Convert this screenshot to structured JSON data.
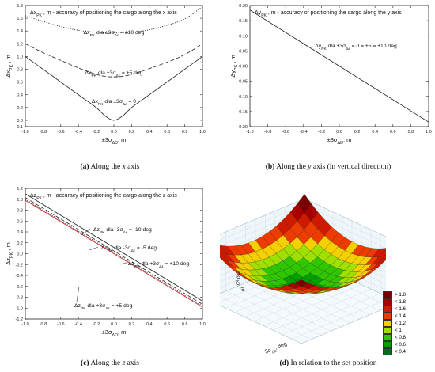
{
  "chart_data": [
    {
      "type": "line",
      "panel_label": "(a)",
      "caption_text": "Along the",
      "caption_axis": "x",
      "caption_tail": "axis",
      "title": "Δx_PK , m - accuracy of positioning the cargo along the x axis",
      "ylabel": "Δx_PK , m",
      "xlabel": "±3σ_ΔD, m",
      "xlim": [
        -1.0,
        1.0
      ],
      "ylim": [
        -0.1,
        1.8
      ],
      "xticks": [
        "-1.0",
        "-0.8",
        "-0.6",
        "-0.4",
        "-0.2",
        "0.0",
        "0.2",
        "0.4",
        "0.6",
        "0.8",
        "1.0"
      ],
      "yticks": [
        "-0.1",
        "0.0",
        "0.2",
        "0.4",
        "0.6",
        "0.8",
        "1.0",
        "1.2",
        "1.4",
        "1.6",
        "1.8"
      ],
      "x": [
        -1.0,
        -0.8,
        -0.6,
        -0.4,
        -0.2,
        -0.1,
        0.0,
        0.1,
        0.2,
        0.4,
        0.6,
        0.8,
        1.0
      ],
      "series": [
        {
          "name": "Δx_PK dla ±3σ_Δε = ±10 deg",
          "style": "dotted",
          "values": [
            1.64,
            1.55,
            1.47,
            1.41,
            1.38,
            1.37,
            1.37,
            1.37,
            1.38,
            1.42,
            1.49,
            1.59,
            1.78
          ]
        },
        {
          "name": "Δx_PK dla ±3σ_Δε = ±5 deg",
          "style": "dashed",
          "values": [
            1.2,
            1.06,
            0.94,
            0.82,
            0.72,
            0.69,
            0.68,
            0.69,
            0.72,
            0.81,
            0.91,
            1.03,
            1.2
          ]
        },
        {
          "name": "Δx_PK dla ±3σ_Δε = 0",
          "style": "solid",
          "values": [
            1.0,
            0.8,
            0.6,
            0.4,
            0.2,
            0.07,
            0.0,
            0.07,
            0.2,
            0.4,
            0.6,
            0.8,
            1.0
          ]
        }
      ]
    },
    {
      "type": "line",
      "panel_label": "(b)",
      "caption_text": "Along the",
      "caption_axis": "y",
      "caption_tail": "axis (in vertical direction)",
      "title": "Δy_PK , m - accuracy of positioning the cargo along the y axis",
      "ylabel": "Δy_PK , m",
      "xlabel": "±3σ_ΔD, m",
      "xlim": [
        -1.0,
        1.0
      ],
      "ylim": [
        -0.2,
        0.2
      ],
      "xticks": [
        "-1.0",
        "-0.8",
        "-0.6",
        "-0.4",
        "-0.2",
        "0.0",
        "0.2",
        "0.4",
        "0.6",
        "0.8",
        "1.0"
      ],
      "yticks": [
        "-0.20",
        "-0.15",
        "-0.10",
        "-0.05",
        "0.00",
        "0.05",
        "0.10",
        "0.15",
        "0.20"
      ],
      "x": [
        -1.0,
        1.0
      ],
      "series": [
        {
          "name": "Δy_PK dla ±3σ_Δε = 0 = ±5 = ±10 deg",
          "style": "solid",
          "values": [
            0.185,
            -0.185
          ]
        }
      ]
    },
    {
      "type": "line",
      "panel_label": "(c)",
      "caption_text": "Along the",
      "caption_axis": "z",
      "caption_tail": "axis",
      "title": "Δz_PK , m - accuracy of positioning the cargo along the z axis",
      "ylabel": "Δz_PK , m",
      "xlabel": "±3σ_ΔD, m",
      "xlim": [
        -1.0,
        1.0
      ],
      "ylim": [
        -1.2,
        1.2
      ],
      "xticks": [
        "-1.0",
        "-0.8",
        "-0.6",
        "-0.4",
        "-0.2",
        "0.0",
        "0.2",
        "0.4",
        "0.6",
        "0.8",
        "1.0"
      ],
      "yticks": [
        "-1.2",
        "-1.0",
        "-0.8",
        "-0.6",
        "-0.4",
        "-0.2",
        "0.0",
        "0.2",
        "0.4",
        "0.6",
        "0.8",
        "1.0",
        "1.2"
      ],
      "x": [
        -1.0,
        1.0
      ],
      "series": [
        {
          "name": "Δz_PK dla -3σ_Δε = -10 deg",
          "style": "solid",
          "color": "#333333",
          "values": [
            1.1,
            -0.87
          ]
        },
        {
          "name": "Δz_PK dla -3σ_Δε = -5 deg",
          "style": "dashed",
          "color": "#333333",
          "values": [
            1.03,
            -0.93
          ]
        },
        {
          "name": "Δz_PK dla +3σ_Δε = +10 deg",
          "style": "solid",
          "color": "#cc2222",
          "values": [
            0.98,
            -0.98
          ]
        },
        {
          "name": "Δz_PK dla +3σ_Δε = +5 deg",
          "style": "dotted",
          "color": "#444444",
          "values": [
            1.0,
            -0.96
          ]
        }
      ]
    },
    {
      "type": "surface",
      "panel_label": "(d)",
      "caption_text": "In relation to the set position",
      "zlabel": "3σ_PK, m",
      "xlabel": "3σ_Δε, deg",
      "ylabel": "3σ_ΔD, m",
      "zticks": [
        "0.0",
        "0.2",
        "0.4",
        "0.6",
        "0.8",
        "1.0",
        "1.2",
        "1.4",
        "1.6",
        "1.8",
        "2.0"
      ],
      "legend": [
        {
          "label": "> 1.8",
          "color": "#7a0000"
        },
        {
          "label": "< 1.8",
          "color": "#a80000"
        },
        {
          "label": "< 1.6",
          "color": "#d01a00"
        },
        {
          "label": "< 1.4",
          "color": "#ee3b00"
        },
        {
          "label": "< 1.2",
          "color": "#f5d000"
        },
        {
          "label": "< 1",
          "color": "#a0e000"
        },
        {
          "label": "< 0.8",
          "color": "#2fc800"
        },
        {
          "label": "< 0.6",
          "color": "#00a000"
        },
        {
          "label": "< 0.4",
          "color": "#006e1a"
        }
      ]
    }
  ]
}
